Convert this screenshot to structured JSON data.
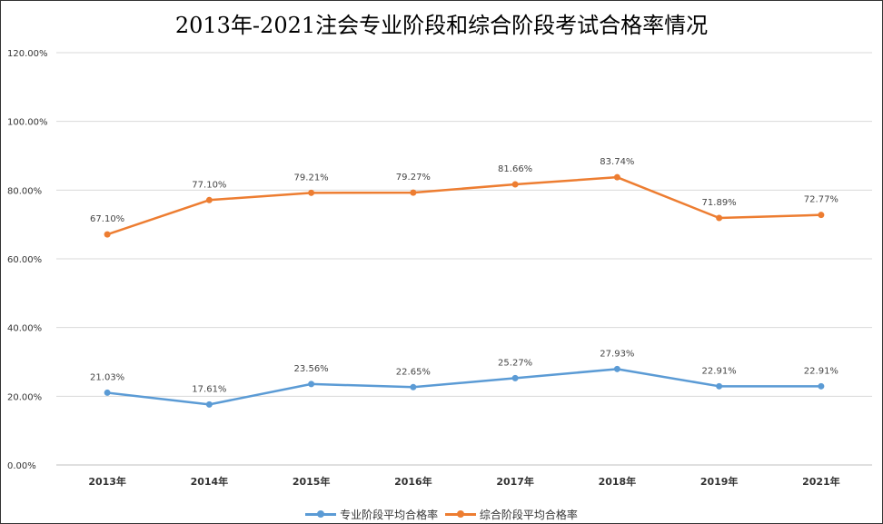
{
  "chart_data": {
    "type": "line",
    "title": "2013年-2021注会专业阶段和综合阶段考试合格率情况",
    "categories": [
      "2013年",
      "2014年",
      "2015年",
      "2016年",
      "2017年",
      "2018年",
      "2019年",
      "2021年"
    ],
    "ylim": [
      0,
      120
    ],
    "yticks": [
      "0.00%",
      "20.00%",
      "40.00%",
      "60.00%",
      "80.00%",
      "100.00%",
      "120.00%"
    ],
    "grid": true,
    "legend_position": "bottom",
    "series": [
      {
        "name": "专业阶段平均合格率",
        "color": "#5b9bd5",
        "values": [
          21.03,
          17.61,
          23.56,
          22.65,
          25.27,
          27.93,
          22.91,
          22.91
        ],
        "labels": [
          "21.03%",
          "17.61%",
          "23.56%",
          "22.65%",
          "25.27%",
          "27.93%",
          "22.91%",
          "22.91%"
        ]
      },
      {
        "name": "综合阶段平均合格率",
        "color": "#ed7d31",
        "values": [
          67.1,
          77.1,
          79.21,
          79.27,
          81.66,
          83.74,
          71.89,
          72.77
        ],
        "labels": [
          "67.10%",
          "77.10%",
          "79.21%",
          "79.27%",
          "81.66%",
          "83.74%",
          "71.89%",
          "72.77%"
        ]
      }
    ]
  }
}
